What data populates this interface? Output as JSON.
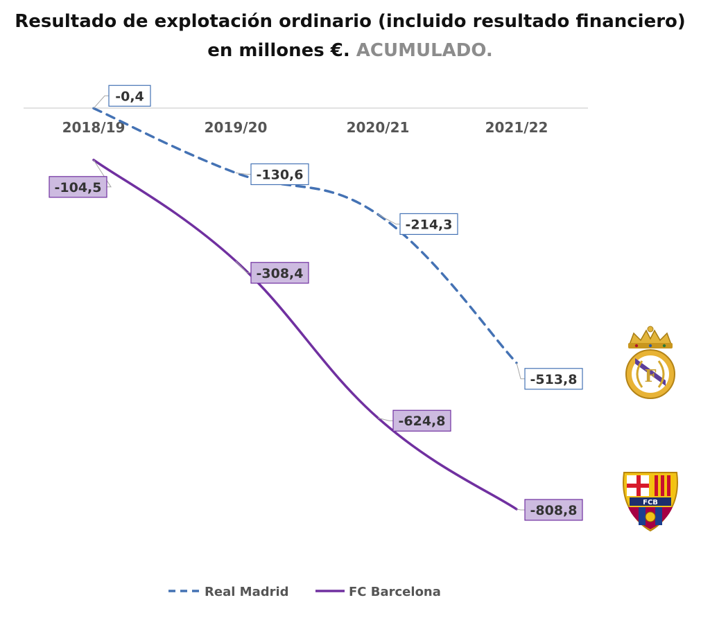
{
  "title_main": "Resultado de explotación ordinario (incluido resultado financiero) en millones €.",
  "title_accent": "ACUMULADO.",
  "chart_data": {
    "type": "line",
    "title": "Resultado de explotación ordinario (incluido resultado financiero) en millones €. ACUMULADO.",
    "categories": [
      "2018/19",
      "2019/20",
      "2020/21",
      "2021/22"
    ],
    "series": [
      {
        "name": "Real Madrid",
        "values": [
          -0.4,
          -130.6,
          -214.3,
          -513.8
        ],
        "labels": [
          "-0,4",
          "-130,6",
          "-214,3",
          "-513,8"
        ],
        "color": "#4472B4",
        "style": "dashed"
      },
      {
        "name": "FC Barcelona",
        "values": [
          -104.5,
          -308.4,
          -624.8,
          -808.8
        ],
        "labels": [
          "-104,5",
          "-308,4",
          "-624,8",
          "-808,8"
        ],
        "color": "#7030A0",
        "style": "solid"
      }
    ],
    "ylim": [
      -900,
      0
    ],
    "xlabel": "",
    "ylabel": "",
    "legend": "bottom",
    "x_axis_position": "top"
  },
  "logos": [
    {
      "name": "Real Madrid",
      "icon": "real-madrid-crest"
    },
    {
      "name": "FC Barcelona",
      "icon": "fc-barcelona-crest",
      "text": "FCB"
    }
  ]
}
